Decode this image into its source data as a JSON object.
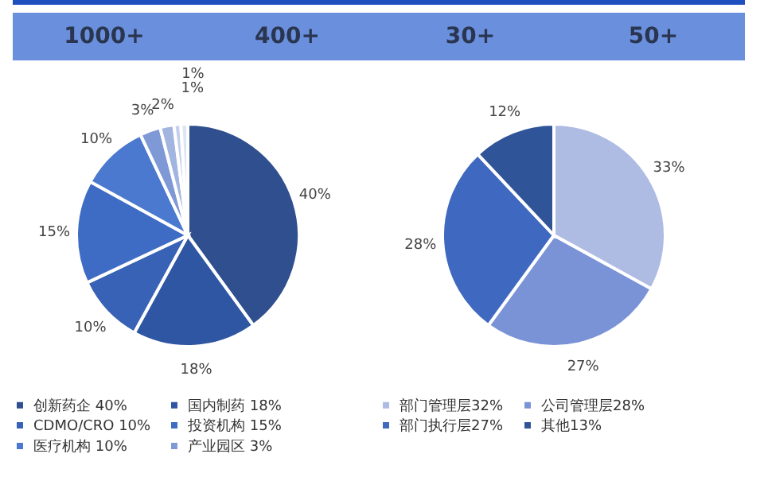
{
  "chart_data": [
    {
      "type": "other",
      "annotations": [
        "1000+",
        "400+",
        "30+",
        "50+"
      ]
    },
    {
      "type": "pie",
      "categories": [
        "创新药企 40%",
        "国内制药 18%",
        "CDMO/CRO 10%",
        "投资机构 15%",
        "医疗机构 10%",
        "产业园区 3%",
        null,
        null,
        null
      ],
      "values": [
        40,
        18,
        10,
        15,
        10,
        3,
        2,
        1,
        1
      ],
      "colors": [
        "#2f4f8f",
        "#2f56a3",
        "#3862b6",
        "#3e6cc4",
        "#4a79cf",
        "#7f99d6",
        "#a2b4e0",
        "#c3cfec",
        "#dde4f4"
      ],
      "value_labels": [
        "40%",
        "18%",
        "10%",
        "15%",
        "10%",
        "3%",
        "2%",
        "1%",
        "1%"
      ],
      "legend": "bottom"
    },
    {
      "type": "pie",
      "categories": [
        "部门管理层32%",
        "公司管理层28%",
        "部门执行层27%",
        "其他13%"
      ],
      "values": [
        33,
        27,
        28,
        12
      ],
      "colors": [
        "#aebbe3",
        "#7a93d6",
        "#3f68c0",
        "#2f5497"
      ],
      "value_labels": [
        "33%",
        "27%",
        "28%",
        "12%"
      ],
      "legend": "bottom"
    }
  ]
}
